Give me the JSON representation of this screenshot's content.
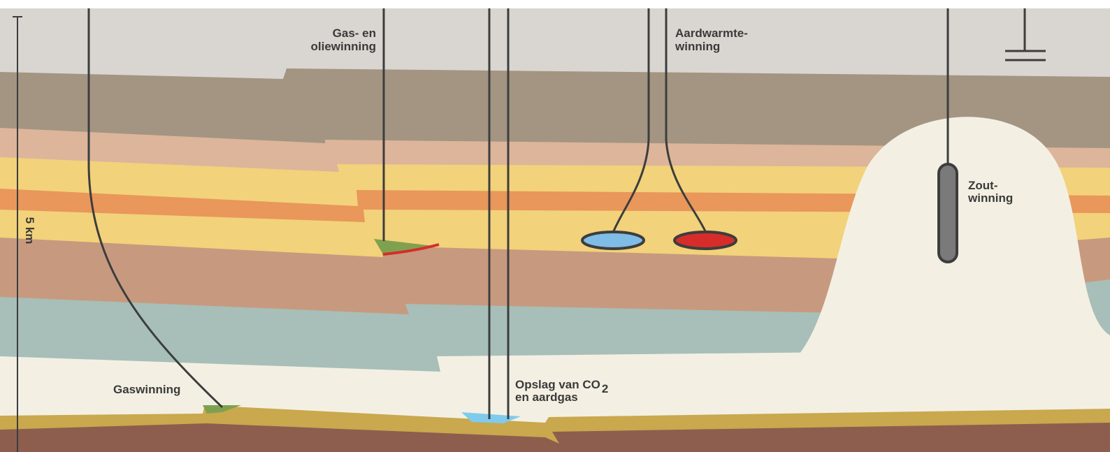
{
  "labels": {
    "gas_olie": [
      "Gas- en",
      "oliewinning"
    ],
    "aardwarmte": [
      "Aardwarmte-",
      "winning"
    ],
    "zout": [
      "Zout-",
      "winning"
    ],
    "gas": [
      "Gaswinning"
    ],
    "opslag": [
      "Opslag van CO",
      "en aardgas"
    ],
    "opslag_subscript": "2"
  },
  "scale": "5 km"
}
